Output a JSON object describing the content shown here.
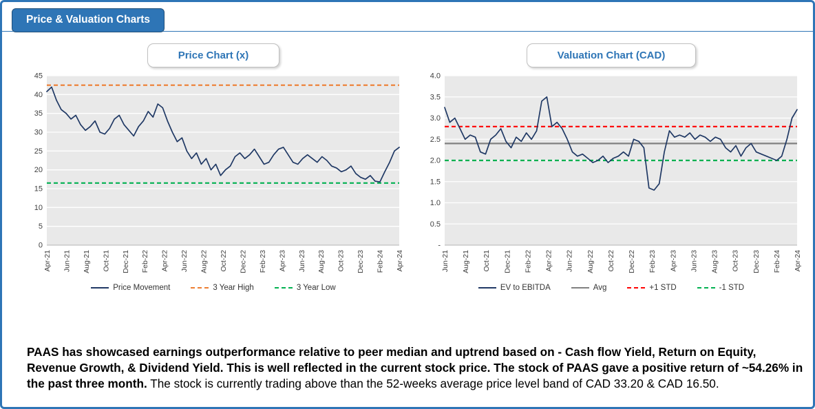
{
  "header": {
    "title": "Price & Valuation Charts"
  },
  "footer": {
    "bold_text": "PAAS has showcased earnings outperformance relative to peer median and uptrend based on - Cash flow Yield, Return on Equity, Revenue Growth,  & Dividend Yield. This is well reflected in the current stock price. The stock of PAAS gave a positive return of ~54.26% in the past three month.",
    "normal_text": "The stock is currently trading above than the 52-weeks average price level band of CAD 33.20 & CAD 16.50."
  },
  "colors": {
    "accent_blue": "#2e75b6",
    "navy_line": "#1f3864",
    "orange_dashed": "#ED7D31",
    "green_dashed": "#00B050",
    "red_dashed": "#FF0000",
    "gray_avg": "#808080",
    "plot_background": "#e9e9e9"
  },
  "chart_data": [
    {
      "type": "line",
      "title": "Price Chart (x)",
      "xlabel": "",
      "ylabel": "",
      "ylim": [
        0,
        45
      ],
      "ytick_step": 5,
      "grid": true,
      "legend_position": "bottom",
      "plot_bg": "#e9e9e9",
      "x_tick_labels": [
        "Apr-21",
        "Jun-21",
        "Aug-21",
        "Oct-21",
        "Dec-21",
        "Feb-22",
        "Apr-22",
        "Jun-22",
        "Aug-22",
        "Oct-22",
        "Dec-22",
        "Feb-23",
        "Apr-23",
        "Jun-23",
        "Aug-23",
        "Oct-23",
        "Dec-23",
        "Feb-24",
        "Apr-24"
      ],
      "series": [
        {
          "name": "Price Movement",
          "color": "#1f3864",
          "style": "solid",
          "values": [
            40.8,
            42.0,
            38.5,
            36.0,
            35.0,
            33.5,
            34.5,
            32.0,
            30.5,
            31.5,
            33.0,
            30.0,
            29.5,
            31.0,
            33.5,
            34.5,
            32.0,
            30.5,
            29.0,
            31.5,
            33.0,
            35.5,
            34.0,
            37.5,
            36.5,
            33.0,
            30.0,
            27.5,
            28.5,
            25.0,
            23.0,
            24.5,
            21.5,
            23.0,
            20.0,
            21.5,
            18.5,
            20.0,
            21.0,
            23.5,
            24.5,
            23.0,
            24.0,
            25.5,
            23.5,
            21.5,
            22.0,
            24.0,
            25.5,
            26.0,
            24.0,
            22.0,
            21.5,
            23.0,
            24.0,
            23.0,
            22.0,
            23.5,
            22.5,
            21.0,
            20.5,
            19.5,
            20.0,
            21.0,
            19.0,
            18.0,
            17.5,
            18.5,
            17.0,
            16.8,
            19.5,
            22.0,
            25.0,
            26.0
          ]
        }
      ],
      "ref_lines": [
        {
          "name": "3 Year High",
          "value": 42.5,
          "color": "#ED7D31",
          "style": "dashed"
        },
        {
          "name": "3 Year Low",
          "value": 16.5,
          "color": "#00B050",
          "style": "dashed"
        }
      ]
    },
    {
      "type": "line",
      "title": "Valuation Chart (CAD)",
      "xlabel": "",
      "ylabel": "",
      "ylim": [
        0,
        4
      ],
      "ytick_step": 0.5,
      "ytick_labels": [
        "-",
        "0.5",
        "1.0",
        "1.5",
        "2.0",
        "2.5",
        "3.0",
        "3.5",
        "4.0"
      ],
      "grid": true,
      "legend_position": "bottom",
      "plot_bg": "#e9e9e9",
      "x_tick_labels": [
        "Jun-21",
        "Aug-21",
        "Oct-21",
        "Dec-21",
        "Feb-22",
        "Apr-22",
        "Jun-22",
        "Aug-22",
        "Oct-22",
        "Dec-22",
        "Feb-23",
        "Apr-23",
        "Jun-23",
        "Aug-23",
        "Oct-23",
        "Dec-23",
        "Feb-24",
        "Apr-24"
      ],
      "series": [
        {
          "name": "EV to EBITDA",
          "color": "#1f3864",
          "style": "solid",
          "values": [
            3.25,
            2.9,
            3.0,
            2.75,
            2.5,
            2.6,
            2.55,
            2.2,
            2.15,
            2.5,
            2.6,
            2.75,
            2.45,
            2.3,
            2.55,
            2.45,
            2.65,
            2.5,
            2.7,
            3.4,
            3.5,
            2.8,
            2.9,
            2.75,
            2.5,
            2.2,
            2.1,
            2.15,
            2.05,
            1.95,
            2.0,
            2.1,
            1.95,
            2.05,
            2.1,
            2.2,
            2.1,
            2.5,
            2.45,
            2.3,
            1.35,
            1.3,
            1.45,
            2.2,
            2.7,
            2.55,
            2.6,
            2.55,
            2.65,
            2.5,
            2.6,
            2.55,
            2.45,
            2.55,
            2.5,
            2.3,
            2.2,
            2.35,
            2.1,
            2.3,
            2.4,
            2.2,
            2.15,
            2.1,
            2.05,
            2.0,
            2.1,
            2.5,
            3.0,
            3.2
          ]
        }
      ],
      "ref_lines": [
        {
          "name": "Avg",
          "value": 2.4,
          "color": "#808080",
          "style": "solid"
        },
        {
          "name": "+1 STD",
          "value": 2.8,
          "color": "#FF0000",
          "style": "dashed"
        },
        {
          "name": "-1 STD",
          "value": 2.0,
          "color": "#00B050",
          "style": "dashed"
        }
      ]
    }
  ]
}
